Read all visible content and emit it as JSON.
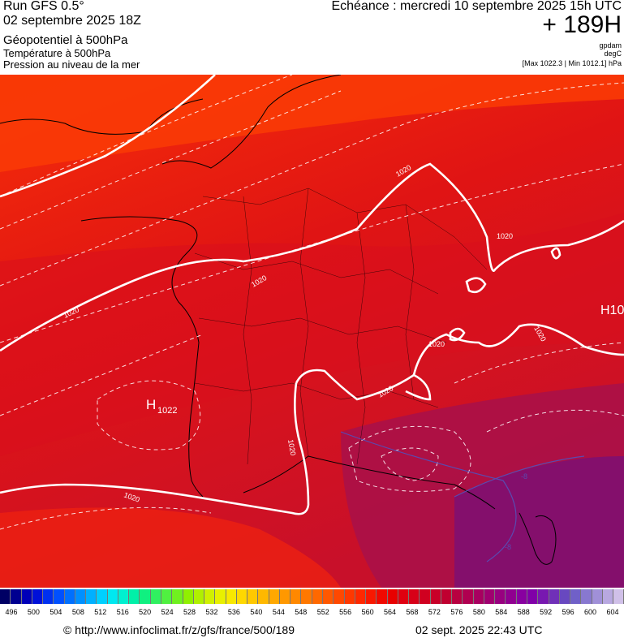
{
  "header": {
    "run_title": "Run GFS 0.5°",
    "run_date": "02 septembre 2025 18Z",
    "geopotential_label": "Géopotentiel à 500hPa",
    "temperature_label": "Température à 500hPa",
    "pressure_label": "Pression au niveau de la mer",
    "echeance": "Echéance : mercredi 10 septembre 2025 15h UTC",
    "plus_hours": "+ 189H",
    "unit_geo": "gpdam",
    "unit_temp": "degC",
    "max_min": "[Max 1022.3 | Min 1012.1] hPa"
  },
  "map": {
    "high_center_letter": "H",
    "high_center_value": "1022",
    "high_east_label": "H10",
    "isobar_labels": [
      "1020",
      "1020",
      "1020",
      "1020",
      "1020",
      "1020",
      "1020",
      "1020",
      "1020",
      "1020"
    ],
    "temp_labels": [
      "-8",
      "-8"
    ]
  },
  "colorbar": {
    "labels": [
      "496",
      "500",
      "504",
      "508",
      "512",
      "516",
      "520",
      "524",
      "528",
      "532",
      "536",
      "540",
      "544",
      "548",
      "552",
      "556",
      "560",
      "564",
      "568",
      "572",
      "576",
      "580",
      "584",
      "588",
      "592",
      "596",
      "600",
      "604"
    ],
    "colors": [
      "#000064",
      "#000090",
      "#0000b8",
      "#0010d8",
      "#0030f0",
      "#0050ff",
      "#0070ff",
      "#0090ff",
      "#00b0ff",
      "#00d0ff",
      "#00e8f0",
      "#00f0d0",
      "#00f0a8",
      "#10f080",
      "#30f060",
      "#50f040",
      "#70f020",
      "#90f000",
      "#b0f000",
      "#d0f000",
      "#e8f000",
      "#f8e800",
      "#ffd800",
      "#ffc800",
      "#ffb800",
      "#ffa800",
      "#ff9800",
      "#ff8800",
      "#ff7800",
      "#ff6800",
      "#ff5800",
      "#ff4800",
      "#ff3800",
      "#ff2800",
      "#f81800",
      "#f00800",
      "#e80000",
      "#e00010",
      "#d80018",
      "#d00020",
      "#c80028",
      "#c00030",
      "#b80040",
      "#b00050",
      "#a80060",
      "#a00070",
      "#980080",
      "#900090",
      "#8800a0",
      "#8000a8",
      "#7818b0",
      "#7030b8",
      "#6848c0",
      "#7060c8",
      "#8878d0",
      "#a090d8",
      "#b8a8e0",
      "#d0c0e8"
    ]
  },
  "footer": {
    "url": "© http://www.infoclimat.fr/z/gfs/france/500/189",
    "timestamp": "02 sept. 2025 22:43 UTC"
  }
}
